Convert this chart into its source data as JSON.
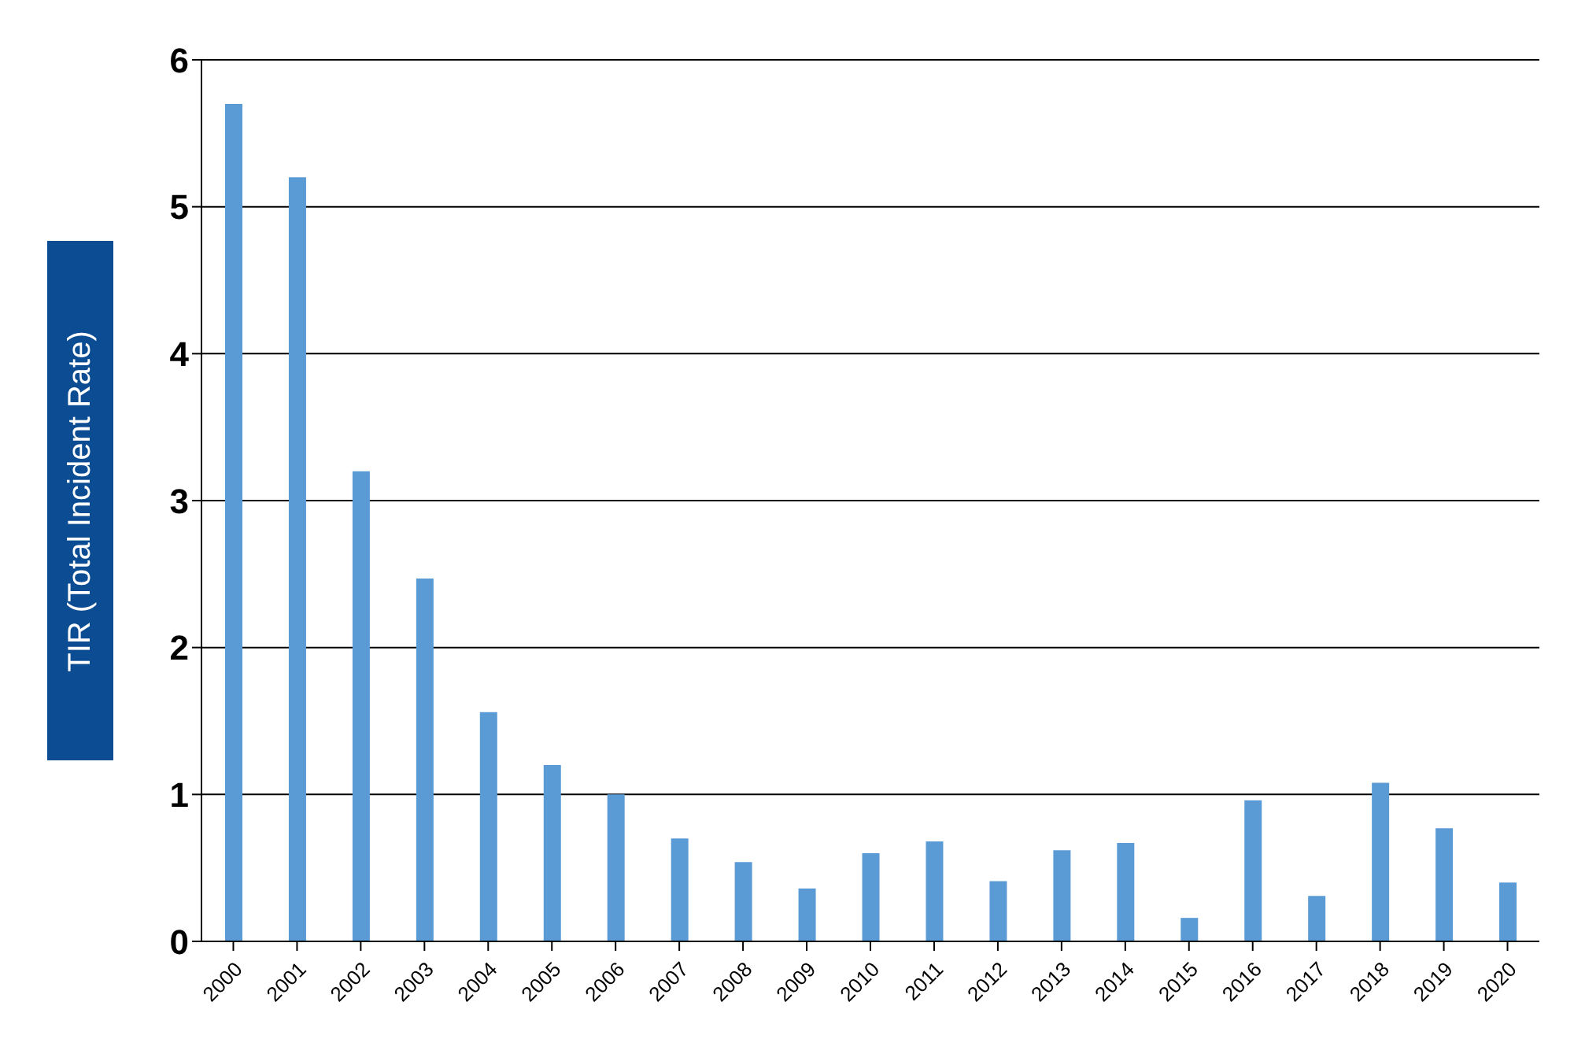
{
  "chart_data": {
    "type": "bar",
    "ylabel": "TIR (Total Incident Rate)",
    "categories": [
      "2000",
      "2001",
      "2002",
      "2003",
      "2004",
      "2005",
      "2006",
      "2007",
      "2008",
      "2009",
      "2010",
      "2011",
      "2012",
      "2013",
      "2014",
      "2015",
      "2016",
      "2017",
      "2018",
      "2019",
      "2020"
    ],
    "values": [
      5.7,
      5.2,
      3.2,
      2.47,
      1.56,
      1.2,
      1.0,
      0.7,
      0.54,
      0.36,
      0.6,
      0.68,
      0.41,
      0.62,
      0.67,
      0.16,
      0.96,
      0.31,
      1.08,
      0.77,
      0.4
    ],
    "color": "#5b9bd5",
    "ylim": [
      0,
      6
    ],
    "yticks": [
      0,
      1,
      2,
      3,
      4,
      5,
      6
    ],
    "grid": "y",
    "legend": false
  }
}
